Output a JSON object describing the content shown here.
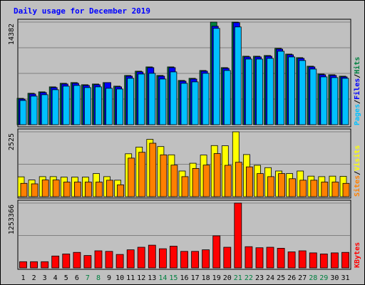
{
  "chart_data": {
    "type": "bar",
    "title": "Daily usage for December 2019",
    "days": [
      "1",
      "2",
      "3",
      "4",
      "5",
      "6",
      "7",
      "8",
      "9",
      "10",
      "11",
      "12",
      "13",
      "14",
      "15",
      "16",
      "17",
      "18",
      "19",
      "20",
      "21",
      "22",
      "23",
      "24",
      "25",
      "26",
      "27",
      "28",
      "29",
      "30",
      "31"
    ],
    "weekend_days": [
      7,
      8,
      14,
      15,
      21,
      22,
      28,
      29
    ],
    "panels": [
      {
        "id": "hits",
        "ymax_label": "14382",
        "ymax": 14382,
        "legend": [
          {
            "label": "Pages",
            "color": "#00c0ff"
          },
          {
            "label": "/",
            "color": "#000000"
          },
          {
            "label": "Files",
            "color": "#0000ff"
          },
          {
            "label": "/",
            "color": "#000000"
          },
          {
            "label": "Hits",
            "color": "#008040"
          }
        ],
        "series": [
          {
            "name": "Hits",
            "color": "#008040",
            "values": [
              3700,
              4400,
              4600,
              5300,
              5800,
              5900,
              5600,
              5700,
              5900,
              5400,
              6900,
              7500,
              8100,
              6900,
              8100,
              6200,
              6500,
              7600,
              14382,
              8000,
              14382,
              9600,
              9600,
              9700,
              10700,
              9900,
              9400,
              8200,
              7100,
              7000,
              6800
            ]
          },
          {
            "name": "Files",
            "color": "#0000ff",
            "values": [
              3600,
              4300,
              4500,
              5200,
              5700,
              5800,
              5500,
              5600,
              5900,
              5300,
              6800,
              7400,
              8000,
              6800,
              8000,
              6100,
              6400,
              7500,
              13800,
              7900,
              14300,
              9500,
              9500,
              9600,
              10600,
              9800,
              9300,
              8100,
              7000,
              6900,
              6700
            ]
          },
          {
            "name": "Pages",
            "color": "#00c0ff",
            "values": [
              3400,
              4000,
              4200,
              4900,
              5400,
              5500,
              5200,
              5300,
              5100,
              5000,
              6500,
              7100,
              7200,
              6400,
              7400,
              5800,
              6000,
              7200,
              13500,
              7600,
              13700,
              9200,
              9200,
              9300,
              10300,
              9500,
              9000,
              7800,
              6700,
              6600,
              6500
            ]
          }
        ]
      },
      {
        "id": "visits",
        "ymax_label": "2525",
        "ymax": 2525,
        "legend": [
          {
            "label": "Sites",
            "color": "#ff8000"
          },
          {
            "label": "/",
            "color": "#000000"
          },
          {
            "label": "Visits",
            "color": "#ffff00"
          }
        ],
        "series": [
          {
            "name": "Visits",
            "color": "#ffff00",
            "values": [
              770,
              650,
              780,
              780,
              760,
              760,
              760,
              900,
              780,
              640,
              1670,
              1930,
              2230,
              1950,
              1630,
              1000,
              1300,
              1620,
              1990,
              1980,
              2525,
              1640,
              1220,
              1130,
              1000,
              900,
              1000,
              800,
              780,
              800,
              790
            ]
          },
          {
            "name": "Sites",
            "color": "#ff8000",
            "values": [
              520,
              500,
              650,
              650,
              570,
              570,
              570,
              570,
              640,
              460,
              1500,
              1730,
              2080,
              1630,
              1230,
              780,
              1100,
              1230,
              1680,
              1220,
              1340,
              1160,
              900,
              780,
              900,
              700,
              640,
              640,
              570,
              570,
              520
            ]
          }
        ]
      },
      {
        "id": "kbytes",
        "ymax_label": "1253366",
        "ymax": 1253366,
        "legend": [
          {
            "label": "KBytes",
            "color": "#ff0000"
          }
        ],
        "series": [
          {
            "name": "KBytes",
            "color": "#ff0000",
            "values": [
              120000,
              120000,
              120000,
              230000,
              270000,
              300000,
              240000,
              330000,
              320000,
              260000,
              350000,
              400000,
              440000,
              370000,
              420000,
              320000,
              320000,
              350000,
              620000,
              400000,
              1253366,
              410000,
              390000,
              400000,
              380000,
              310000,
              330000,
              290000,
              270000,
              290000,
              300000
            ]
          }
        ]
      }
    ]
  }
}
